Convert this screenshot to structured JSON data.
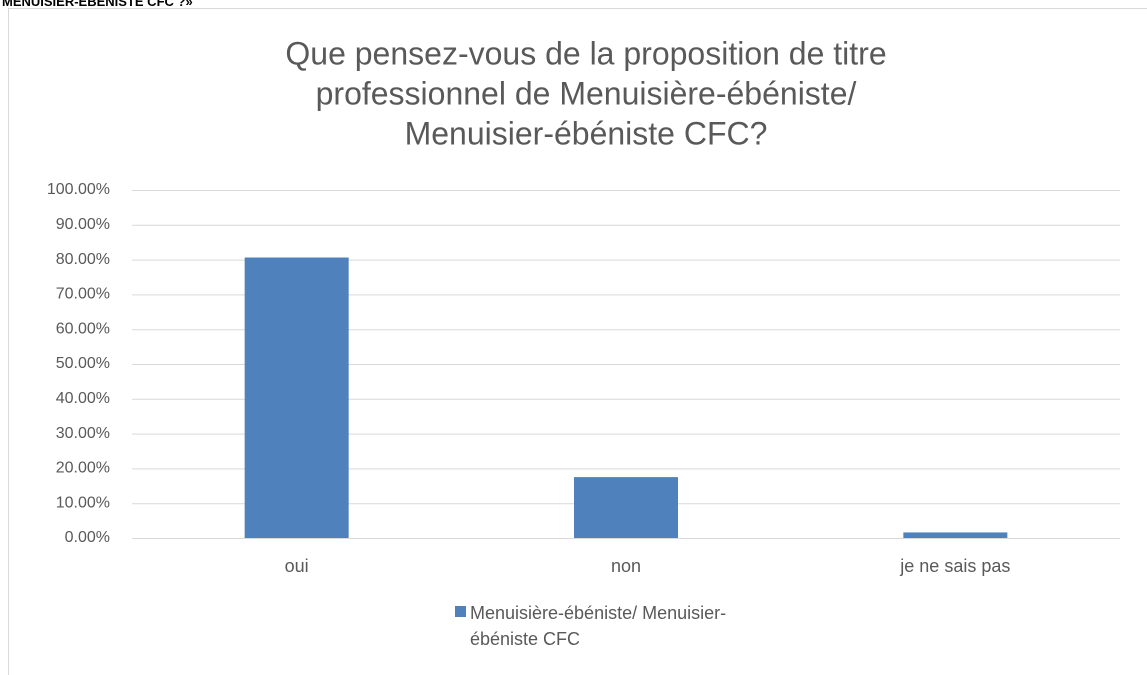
{
  "chart_data": {
    "type": "bar",
    "caption": "MENUISIER-ÉBÉNISTE CFC ?»",
    "title": [
      "Que pensez-vous de la proposition de titre",
      "professionnel de Menuisière-ébéniste/",
      "Menuisier-ébéniste CFC?"
    ],
    "categories": [
      "oui",
      "non",
      "je ne sais pas"
    ],
    "series": [
      {
        "name": "Menuisière-ébéniste/ Menuisier-ébéniste CFC",
        "color": "#4f81bd",
        "values": [
          80.6,
          17.5,
          1.6
        ]
      }
    ],
    "ylim": [
      0,
      100
    ],
    "yticks": [
      {
        "value": 0,
        "label": "0.00%"
      },
      {
        "value": 10,
        "label": "10.00%"
      },
      {
        "value": 20,
        "label": "20.00%"
      },
      {
        "value": 30,
        "label": "30.00%"
      },
      {
        "value": 40,
        "label": "40.00%"
      },
      {
        "value": 50,
        "label": "50.00%"
      },
      {
        "value": 60,
        "label": "60.00%"
      },
      {
        "value": 70,
        "label": "70.00%"
      },
      {
        "value": 80,
        "label": "80.00%"
      },
      {
        "value": 90,
        "label": "90.00%"
      },
      {
        "value": 100,
        "label": "100.00%"
      }
    ],
    "grid": true,
    "legend": "bottom"
  }
}
